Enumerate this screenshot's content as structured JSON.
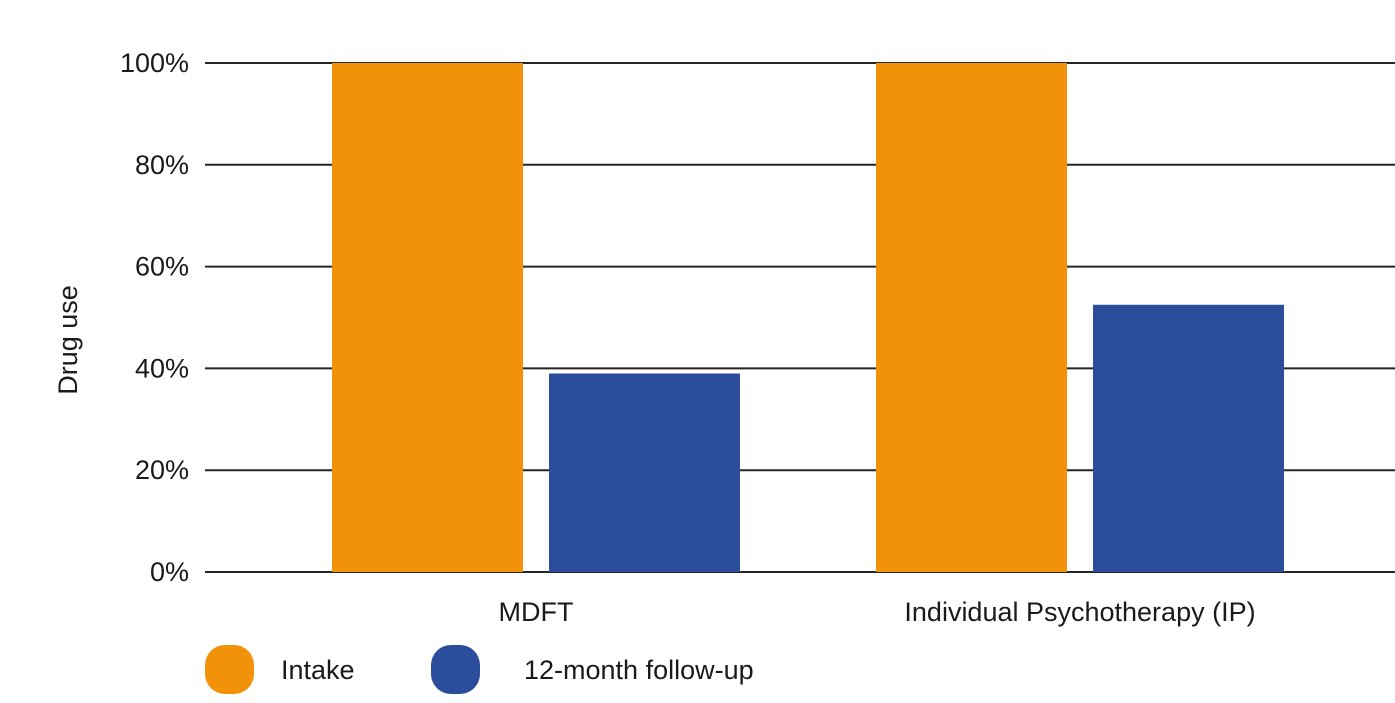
{
  "chart_data": {
    "type": "bar",
    "title": "",
    "xlabel": "",
    "ylabel": "Drug use",
    "ylim": [
      0,
      100
    ],
    "y_ticks": [
      "0%",
      "20%",
      "40%",
      "60%",
      "80%",
      "100%"
    ],
    "y_tick_values": [
      0,
      20,
      40,
      60,
      80,
      100
    ],
    "categories": [
      "MDFT",
      "Individual Psychotherapy (IP)"
    ],
    "series": [
      {
        "name": "Intake",
        "color": "#f29208",
        "values": [
          100,
          100
        ]
      },
      {
        "name": "12-month follow-up",
        "color": "#2c4d9c",
        "values": [
          39,
          52.5
        ]
      }
    ],
    "grid": true,
    "legend_position": "bottom-left"
  }
}
